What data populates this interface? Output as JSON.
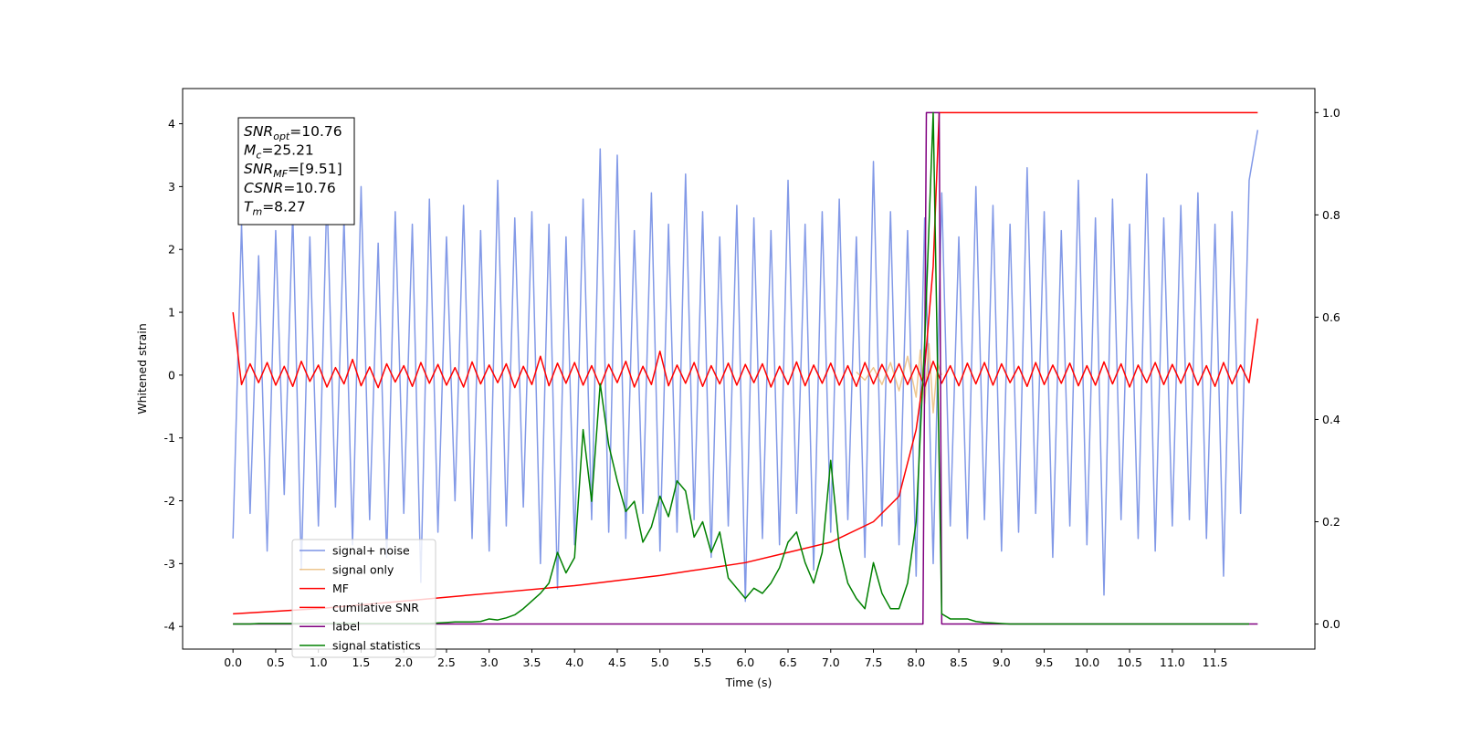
{
  "chart_data": {
    "type": "line",
    "xlabel": "Time (s)",
    "ylabel": "Whitened strain",
    "xlim": [
      -0.59,
      12.67
    ],
    "ylim": [
      -4.36,
      4.56
    ],
    "y2lim": [
      -0.049,
      1.047
    ],
    "xticks": [
      {
        "value": 0,
        "label": "0.0"
      },
      0.5,
      {
        "value": 1,
        "label": "1.0"
      },
      1.5,
      {
        "value": 2,
        "label": "2.0"
      },
      2.5,
      {
        "value": 3,
        "label": "3.0"
      },
      3.5,
      {
        "value": 4,
        "label": "4.0"
      },
      4.5,
      {
        "value": 5,
        "label": "5.0"
      },
      5.5,
      {
        "value": 6,
        "label": "6.0"
      },
      6.5,
      {
        "value": 7,
        "label": "7.0"
      },
      7.5,
      {
        "value": 8,
        "label": "8.0"
      },
      8.5,
      {
        "value": 9,
        "label": "9.0"
      },
      9.5,
      {
        "value": 10,
        "label": "10.0"
      },
      10.5,
      {
        "value": 11,
        "label": "11.0"
      },
      11.5
    ],
    "yticks": [
      -4,
      -3,
      -2,
      -1,
      0,
      1,
      2,
      3,
      4
    ],
    "y2ticks": [
      {
        "value": 0,
        "label": "0.0"
      },
      0.2,
      0.4,
      0.6,
      0.8,
      {
        "value": 1,
        "label": "1.0"
      }
    ],
    "annotation": [
      {
        "symbol": "SNR",
        "subscript": "opt",
        "text": "=10.76"
      },
      {
        "symbol": "M",
        "subscript": "c",
        "text": "=25.21"
      },
      {
        "symbol": "SNR",
        "subscript": "MF",
        "text": "=[9.51]"
      },
      {
        "symbol": "CSNR",
        "subscript": "",
        "text": "=10.76"
      },
      {
        "symbol": "T",
        "subscript": "m",
        "text": "=8.27"
      }
    ],
    "x": [
      0,
      0.1,
      0.2,
      0.3,
      0.4,
      0.5,
      0.6,
      0.7,
      0.8,
      0.9,
      1,
      1.1,
      1.2,
      1.3,
      1.4,
      1.5,
      1.6,
      1.7,
      1.8,
      1.9,
      2,
      2.1,
      2.2,
      2.3,
      2.4,
      2.5,
      2.6,
      2.7,
      2.8,
      2.9,
      3,
      3.1,
      3.2,
      3.3,
      3.4,
      3.5,
      3.6,
      3.7,
      3.8,
      3.9,
      4,
      4.1,
      4.2,
      4.3,
      4.4,
      4.5,
      4.6,
      4.7,
      4.8,
      4.9,
      5,
      5.1,
      5.2,
      5.3,
      5.4,
      5.5,
      5.6,
      5.7,
      5.8,
      5.9,
      6,
      6.1,
      6.2,
      6.3,
      6.4,
      6.5,
      6.6,
      6.7,
      6.8,
      6.9,
      7,
      7.1,
      7.2,
      7.3,
      7.4,
      7.5,
      7.6,
      7.7,
      7.8,
      7.9,
      8,
      8.1,
      8.2,
      8.3,
      8.4,
      8.5,
      8.6,
      8.7,
      8.8,
      8.9,
      9,
      9.1,
      9.2,
      9.3,
      9.4,
      9.5,
      9.6,
      9.7,
      9.8,
      9.9,
      10,
      10.1,
      10.2,
      10.3,
      10.4,
      10.5,
      10.6,
      10.7,
      10.8,
      10.9,
      11,
      11.1,
      11.2,
      11.3,
      11.4,
      11.5,
      11.6,
      11.7,
      11.8,
      11.9,
      12
    ],
    "series": [
      {
        "name": "signal+ noise",
        "color": "#7b93e6",
        "values": [
          -2.6,
          2.4,
          -2.2,
          1.9,
          -2.8,
          2.3,
          -1.9,
          2.6,
          -3.1,
          2.2,
          -2.4,
          2.9,
          -2.1,
          2.5,
          -2.7,
          3.0,
          -2.3,
          2.1,
          -2.9,
          2.6,
          -2.2,
          2.4,
          -3.3,
          2.8,
          -2.5,
          2.2,
          -2.0,
          2.7,
          -2.6,
          2.3,
          -2.8,
          3.1,
          -2.4,
          2.5,
          -2.1,
          2.6,
          -3.0,
          2.4,
          -3.4,
          2.2,
          -2.7,
          2.8,
          -2.3,
          3.6,
          -2.5,
          3.5,
          -2.6,
          2.3,
          -2.2,
          2.9,
          -2.8,
          2.4,
          -2.5,
          3.2,
          -2.3,
          2.6,
          -2.9,
          2.2,
          -2.4,
          2.7,
          -3.6,
          2.5,
          -2.6,
          2.3,
          -2.7,
          3.1,
          -2.2,
          2.4,
          -3.1,
          2.6,
          -2.5,
          2.8,
          -2.3,
          2.2,
          -2.9,
          3.4,
          -2.4,
          2.6,
          -2.7,
          2.3,
          -3.2,
          2.5,
          -3.0,
          2.9,
          -2.4,
          2.2,
          -2.6,
          3.0,
          -2.3,
          2.7,
          -2.8,
          2.4,
          -2.5,
          3.3,
          -2.2,
          2.6,
          -2.9,
          2.3,
          -2.4,
          3.1,
          -2.7,
          2.5,
          -3.5,
          2.8,
          -2.3,
          2.4,
          -2.6,
          3.2,
          -2.8,
          2.5,
          -2.4,
          2.7,
          -2.3,
          2.9,
          -2.6,
          2.4,
          -3.2,
          2.6,
          -2.2,
          3.1,
          3.9
        ]
      },
      {
        "name": "signal only",
        "color": "#e8b36a",
        "x": [
          7.3,
          7.4,
          7.5,
          7.6,
          7.7,
          7.8,
          7.9,
          8.0,
          8.05,
          8.1,
          8.15,
          8.2,
          8.25,
          8.3
        ],
        "values": [
          0.05,
          -0.08,
          0.12,
          -0.15,
          0.2,
          -0.25,
          0.3,
          -0.35,
          0.4,
          -0.45,
          0.5,
          -0.6,
          0.2,
          0
        ]
      },
      {
        "name": "MF",
        "color": "#ff0000",
        "values": [
          1.0,
          -0.15,
          0.18,
          -0.12,
          0.2,
          -0.16,
          0.14,
          -0.18,
          0.22,
          -0.1,
          0.16,
          -0.19,
          0.12,
          -0.14,
          0.25,
          -0.17,
          0.13,
          -0.2,
          0.18,
          -0.11,
          0.15,
          -0.18,
          0.2,
          -0.13,
          0.17,
          -0.16,
          0.12,
          -0.19,
          0.21,
          -0.14,
          0.16,
          -0.12,
          0.18,
          -0.2,
          0.14,
          -0.15,
          0.3,
          -0.17,
          0.19,
          -0.13,
          0.2,
          -0.16,
          0.15,
          -0.18,
          0.17,
          -0.12,
          0.22,
          -0.19,
          0.14,
          -0.15,
          0.38,
          -0.17,
          0.16,
          -0.13,
          0.2,
          -0.18,
          0.15,
          -0.14,
          0.19,
          -0.16,
          0.17,
          -0.12,
          0.18,
          -0.19,
          0.14,
          -0.15,
          0.21,
          -0.17,
          0.16,
          -0.13,
          0.19,
          -0.16,
          0.15,
          -0.18,
          0.2,
          -0.14,
          0.17,
          -0.12,
          0.18,
          -0.15,
          0.16,
          -0.19,
          0.22,
          -0.13,
          0.15,
          -0.17,
          0.19,
          -0.14,
          0.2,
          -0.16,
          0.18,
          -0.12,
          0.14,
          -0.18,
          0.2,
          -0.15,
          0.16,
          -0.13,
          0.19,
          -0.17,
          0.15,
          -0.16,
          0.21,
          -0.14,
          0.18,
          -0.19,
          0.16,
          -0.12,
          0.2,
          -0.15,
          0.17,
          -0.13,
          0.19,
          -0.16,
          0.15,
          -0.18,
          0.2,
          -0.14,
          0.16,
          -0.12,
          0.9
        ]
      },
      {
        "name": "cumilative SNR",
        "color": "#ff0000",
        "axis": "y2",
        "x": [
          0,
          1,
          2,
          3,
          4,
          5,
          6,
          6.5,
          7,
          7.5,
          7.8,
          8.0,
          8.1,
          8.2,
          8.27,
          12
        ],
        "values": [
          0.02,
          0.03,
          0.045,
          0.06,
          0.075,
          0.095,
          0.12,
          0.14,
          0.16,
          0.2,
          0.25,
          0.38,
          0.5,
          0.7,
          1.0,
          1.0
        ]
      },
      {
        "name": "label",
        "color": "#800080",
        "axis": "y2",
        "x": [
          0,
          8.08,
          8.12,
          8.27,
          8.3,
          12
        ],
        "values": [
          0,
          0,
          1,
          1,
          0,
          0
        ]
      },
      {
        "name": "signal statistics",
        "color": "#008000",
        "axis": "y2",
        "values": [
          0,
          0,
          0,
          0.001,
          0.001,
          0.001,
          0.001,
          0.001,
          0.001,
          0.001,
          0.001,
          0.001,
          0.001,
          0.001,
          0.001,
          0.001,
          0.001,
          0.001,
          0.001,
          0.001,
          0.001,
          0.001,
          0.001,
          0.001,
          0.002,
          0.003,
          0.004,
          0.004,
          0.004,
          0.005,
          0.01,
          0.008,
          0.012,
          0.018,
          0.03,
          0.045,
          0.06,
          0.08,
          0.14,
          0.1,
          0.13,
          0.38,
          0.24,
          0.47,
          0.35,
          0.28,
          0.22,
          0.24,
          0.16,
          0.19,
          0.25,
          0.21,
          0.28,
          0.26,
          0.17,
          0.2,
          0.14,
          0.18,
          0.09,
          0.07,
          0.05,
          0.07,
          0.06,
          0.08,
          0.11,
          0.16,
          0.18,
          0.12,
          0.08,
          0.14,
          0.32,
          0.15,
          0.08,
          0.05,
          0.03,
          0.12,
          0.06,
          0.03,
          0.03,
          0.08,
          0.2,
          0.55,
          1.0,
          0.02,
          0.01,
          0.01,
          0.01,
          0.005,
          0.003,
          0.002,
          0.001,
          0,
          0,
          0,
          0,
          0,
          0,
          0,
          0,
          0,
          0,
          0,
          0,
          0,
          0,
          0,
          0,
          0,
          0,
          0,
          0,
          0,
          0,
          0,
          0,
          0,
          0,
          0,
          0,
          0,
          null
        ]
      }
    ]
  }
}
